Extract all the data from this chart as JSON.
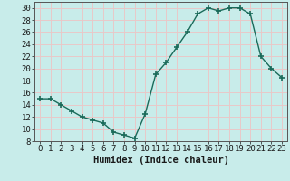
{
  "x": [
    0,
    1,
    2,
    3,
    4,
    5,
    6,
    7,
    8,
    9,
    10,
    11,
    12,
    13,
    14,
    15,
    16,
    17,
    18,
    19,
    20,
    21,
    22,
    23
  ],
  "y": [
    15,
    15,
    14,
    13,
    12,
    11.5,
    11,
    9.5,
    9,
    8.5,
    12.5,
    19,
    21,
    23.5,
    26,
    29,
    30,
    29.5,
    30,
    30,
    29,
    22,
    20,
    18.5
  ],
  "xlabel": "Humidex (Indice chaleur)",
  "xlim": [
    -0.5,
    23.5
  ],
  "ylim": [
    8,
    31
  ],
  "yticks": [
    8,
    10,
    12,
    14,
    16,
    18,
    20,
    22,
    24,
    26,
    28,
    30
  ],
  "xticks": [
    0,
    1,
    2,
    3,
    4,
    5,
    6,
    7,
    8,
    9,
    10,
    11,
    12,
    13,
    14,
    15,
    16,
    17,
    18,
    19,
    20,
    21,
    22,
    23
  ],
  "line_color": "#1a6b5a",
  "bg_color": "#c8ecea",
  "grid_color": "#e8c8c8",
  "xlabel_fontsize": 7.5,
  "tick_fontsize": 6.5
}
